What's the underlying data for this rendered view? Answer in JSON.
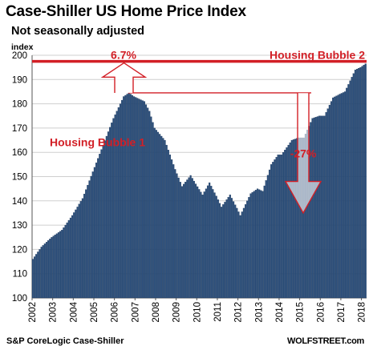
{
  "chart_data": {
    "type": "bar",
    "title": "Case-Shiller US Home Price Index",
    "subtitle": "Not seasonally adjusted",
    "ylabel": "index",
    "source": "S&P CoreLogic Case-Shiller",
    "brand": "WOLFSTREET.com",
    "ylim": [
      100,
      200
    ],
    "yticks": [
      100,
      110,
      120,
      130,
      140,
      150,
      160,
      170,
      180,
      190,
      200
    ],
    "xticks": [
      "2002",
      "2003",
      "2004",
      "2005",
      "2006",
      "2007",
      "2008",
      "2009",
      "2010",
      "2011",
      "2012",
      "2013",
      "2014",
      "2015",
      "2016",
      "2017",
      "2018"
    ],
    "x_start": "2002-01",
    "x_end": "2018-03",
    "anchors": [
      [
        "2002-01",
        116
      ],
      [
        "2002-06",
        121
      ],
      [
        "2002-12",
        125
      ],
      [
        "2003-06",
        128
      ],
      [
        "2003-12",
        134
      ],
      [
        "2004-06",
        141
      ],
      [
        "2004-12",
        152
      ],
      [
        "2005-06",
        163
      ],
      [
        "2005-12",
        174
      ],
      [
        "2006-06",
        183
      ],
      [
        "2006-09",
        184.5
      ],
      [
        "2006-12",
        183
      ],
      [
        "2007-06",
        181
      ],
      [
        "2007-09",
        177
      ],
      [
        "2007-12",
        170
      ],
      [
        "2008-06",
        165
      ],
      [
        "2008-12",
        153
      ],
      [
        "2009-04",
        146
      ],
      [
        "2009-09",
        150.5
      ],
      [
        "2009-12",
        147
      ],
      [
        "2010-04",
        142.5
      ],
      [
        "2010-08",
        147.5
      ],
      [
        "2010-12",
        142
      ],
      [
        "2011-03",
        137.5
      ],
      [
        "2011-08",
        142.5
      ],
      [
        "2011-12",
        137
      ],
      [
        "2012-02",
        134
      ],
      [
        "2012-08",
        143
      ],
      [
        "2012-12",
        145
      ],
      [
        "2013-03",
        144
      ],
      [
        "2013-08",
        155
      ],
      [
        "2013-12",
        159
      ],
      [
        "2014-02",
        159
      ],
      [
        "2014-08",
        165
      ],
      [
        "2014-12",
        166
      ],
      [
        "2015-03",
        166
      ],
      [
        "2015-08",
        174
      ],
      [
        "2015-12",
        175
      ],
      [
        "2016-03",
        175
      ],
      [
        "2016-08",
        182.5
      ],
      [
        "2016-12",
        184
      ],
      [
        "2017-03",
        185
      ],
      [
        "2017-09",
        194
      ],
      [
        "2017-12",
        195
      ],
      [
        "2018-03",
        196.5
      ]
    ],
    "bar_color": "#2b4f7c",
    "annotation_color": "#d21f26",
    "annotations": [
      {
        "text": "6.7%"
      },
      {
        "text": "Housing Bubble 2"
      },
      {
        "text": "Housing Bubble 1"
      },
      {
        "text": "-27%"
      }
    ]
  }
}
